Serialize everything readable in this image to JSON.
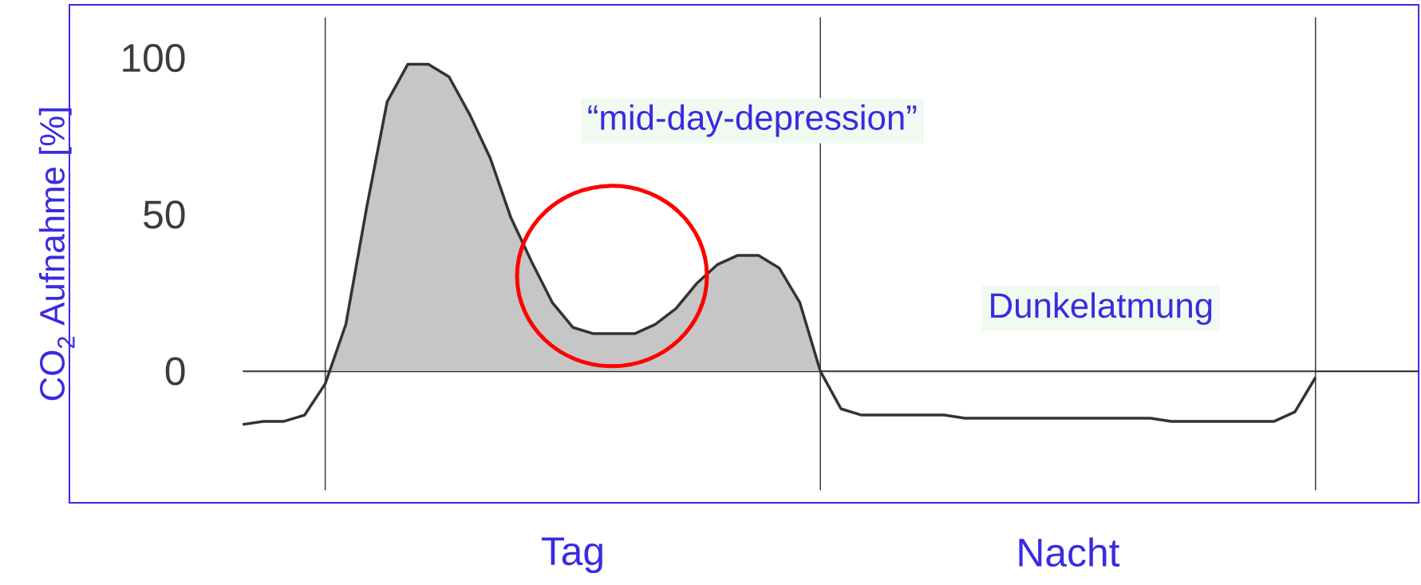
{
  "chart_data": {
    "type": "area",
    "ylabel": "CO$_{2}$ Aufnahme [%]",
    "annotations": [
      "“mid-day-depression”",
      "Dunkelatmung"
    ],
    "categories": [
      null,
      null,
      null,
      null,
      null,
      null,
      null,
      null,
      null,
      null,
      null,
      null,
      null,
      null,
      null,
      null,
      "Tag",
      null,
      null,
      null,
      null,
      null,
      null,
      null,
      null,
      null,
      null,
      null,
      null,
      null,
      null,
      null,
      null,
      null,
      null,
      null,
      null,
      null,
      null,
      null,
      "Nacht",
      null,
      null,
      null,
      null,
      null,
      null,
      null,
      null,
      null,
      null,
      null,
      null
    ],
    "series": [
      {
        "color": "#333333",
        "values": [
          -17,
          -16,
          -16,
          -14,
          -4,
          15,
          52,
          86,
          98,
          98,
          94,
          82,
          68,
          49,
          35,
          22,
          14,
          12,
          12,
          12,
          15,
          20,
          28,
          34,
          37,
          37,
          33,
          22,
          0,
          -12,
          -14,
          -14,
          -14,
          -14,
          -14,
          -15,
          -15,
          -15,
          -15,
          -15,
          -15,
          -15,
          -15,
          -15,
          -15,
          -16,
          -16,
          -16,
          -16,
          -16,
          -16,
          -13,
          -2
        ]
      }
    ],
    "ylim": [
      -42,
      117
    ],
    "yticks": [
      0,
      50,
      100
    ],
    "ref_lines": [
      {
        "axis": "y",
        "value": 0,
        "color": "#222222"
      }
    ],
    "marker": "none",
    "line_style": "solid"
  }
}
